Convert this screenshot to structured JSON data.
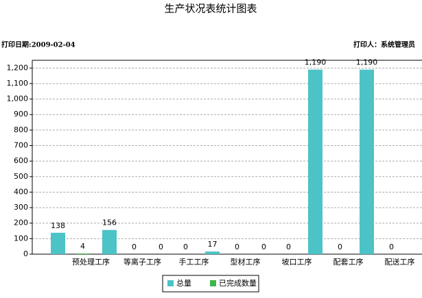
{
  "header": {
    "title": "生产状况表统计图表",
    "print_date": "打印日期:2009-02-04",
    "printer": "打印人：系统管理员"
  },
  "chart_data": {
    "type": "bar",
    "categories": [
      "预处理工序",
      "等离子工序",
      "手工工序",
      "型材工序",
      "坡口工序",
      "配套工序",
      "配送工序"
    ],
    "series": [
      {
        "name": "总量",
        "color": "#4cc3c6",
        "values": [
          138,
          156,
          0,
          17,
          0,
          1190,
          1190
        ],
        "value_labels": [
          "138",
          "156",
          "0",
          "17",
          "0",
          "1,190",
          "1,190"
        ]
      },
      {
        "name": "已完成数量",
        "color": "#3cb54a",
        "values": [
          4,
          0,
          0,
          0,
          0,
          0,
          0
        ]
      }
    ],
    "ylim": [
      0,
      1250
    ],
    "yticks": [
      0,
      100,
      200,
      300,
      400,
      500,
      600,
      700,
      800,
      900,
      {
        "value": 1000,
        "label": "1,000"
      },
      {
        "value": 1100,
        "label": "1,100"
      },
      {
        "value": 1200,
        "label": "1,200"
      }
    ],
    "grid": true
  }
}
